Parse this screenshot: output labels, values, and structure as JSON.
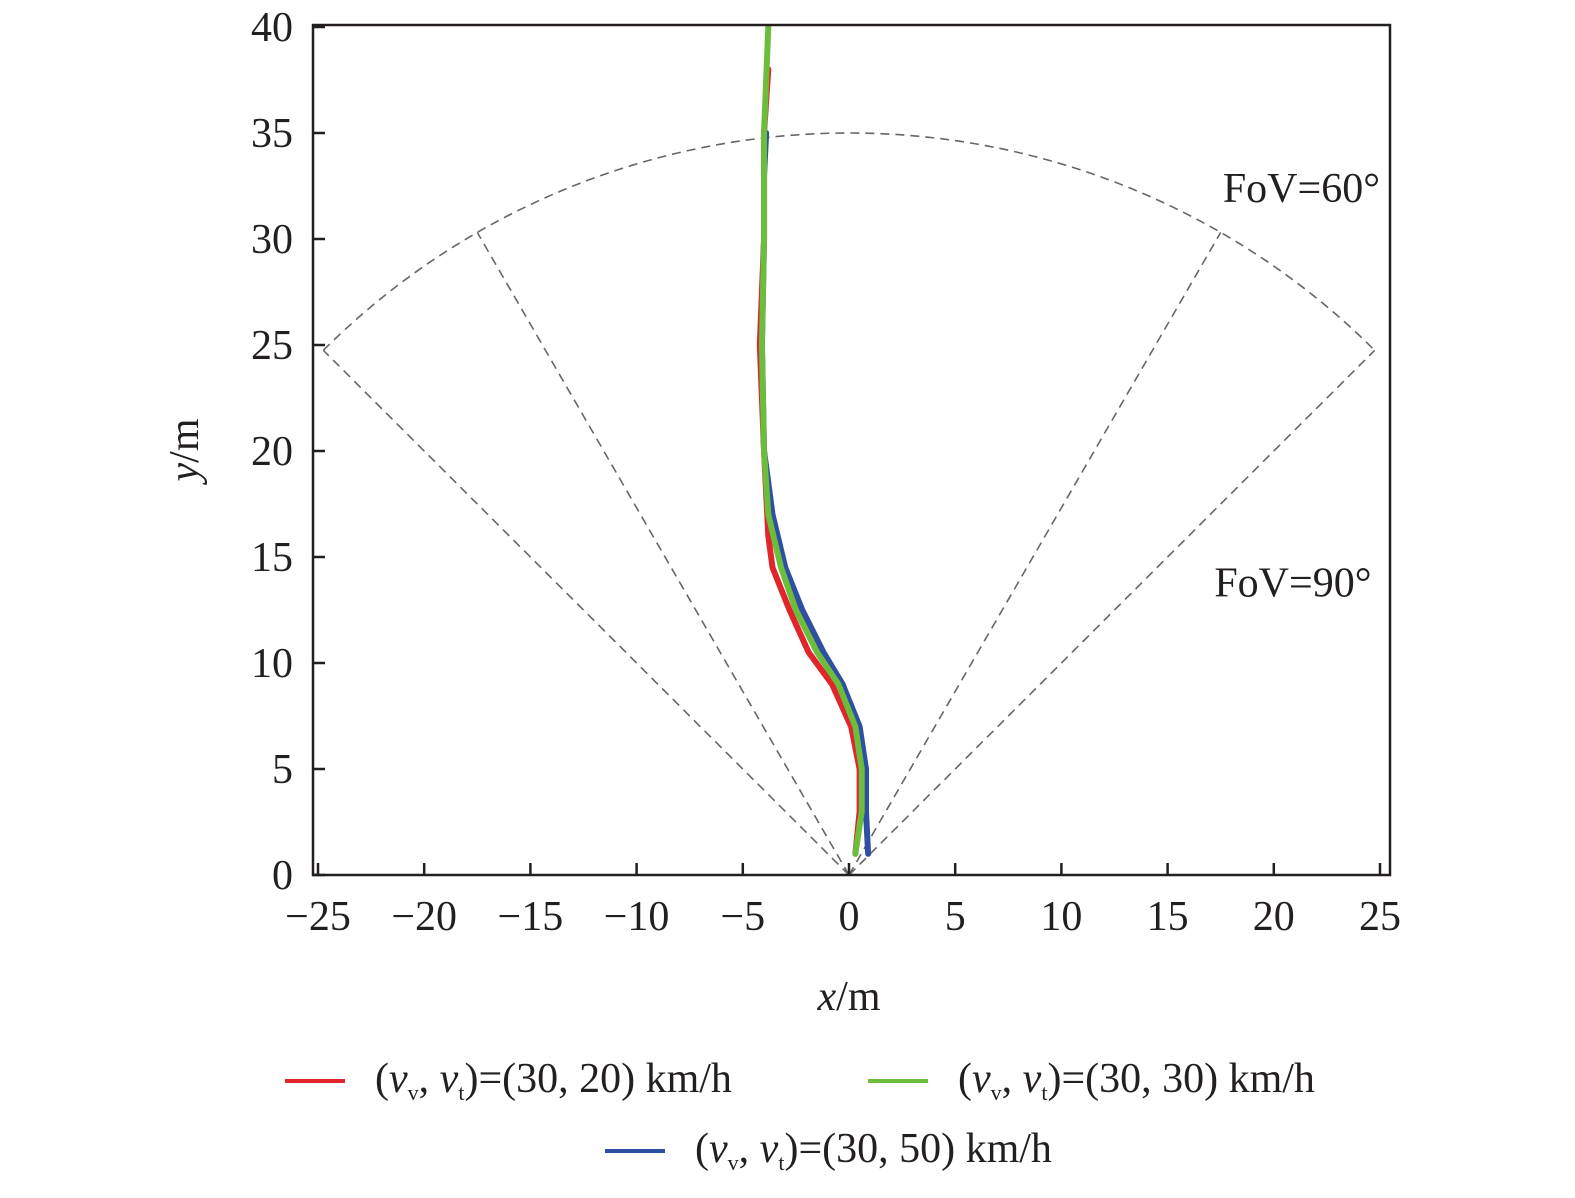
{
  "chart_data": {
    "type": "line",
    "xlabel": {
      "var": "x",
      "unit": "/m"
    },
    "ylabel": {
      "var": "y",
      "unit": "/m"
    },
    "xlim": [
      -25.3,
      25.5
    ],
    "ylim": [
      0,
      40
    ],
    "xticks": [
      -25,
      -20,
      -15,
      -10,
      -5,
      0,
      5,
      10,
      15,
      20,
      25
    ],
    "yticks": [
      0,
      5,
      10,
      15,
      20,
      25,
      30,
      35,
      40
    ],
    "xtick_labels": [
      "−25",
      "−20",
      "−15",
      "−10",
      "−5",
      "0",
      "5",
      "10",
      "15",
      "20",
      "25"
    ],
    "ytick_labels": [
      "0",
      "5",
      "10",
      "15",
      "20",
      "25",
      "30",
      "35",
      "40"
    ],
    "grid": false,
    "legend_placement": "bottom",
    "annotations": [
      {
        "text": "FoV=60°",
        "x": 21.3,
        "y": 32.4
      },
      {
        "text": "FoV=90°",
        "x": 20.9,
        "y": 13.8
      }
    ],
    "fov_sectors": [
      {
        "angle_deg": 60,
        "radius": 35
      },
      {
        "angle_deg": 90,
        "radius": 35
      }
    ],
    "series": [
      {
        "name_symbol": {
          "v": "v",
          "sub1": "v",
          "sub2": "t"
        },
        "name_value": "=(30, 20) km/h",
        "color": "#e0262c",
        "x": [
          0.3,
          0.5,
          0.5,
          0.1,
          -0.8,
          -1.9,
          -2.8,
          -3.6,
          -3.8,
          -4.0,
          -4.2,
          -4.0,
          -4.0,
          -3.8
        ],
        "y": [
          1,
          3,
          5,
          7,
          9,
          10.5,
          12.5,
          14.5,
          16,
          20,
          25,
          30,
          35,
          38
        ]
      },
      {
        "name_symbol": {
          "v": "v",
          "sub1": "v",
          "sub2": "t"
        },
        "name_value": "=(30, 50) km/h",
        "color": "#2f4fa2",
        "x": [
          0.9,
          0.8,
          0.8,
          0.5,
          -0.3,
          -1.2,
          -2.2,
          -3.0,
          -3.6,
          -4.0,
          -4.1,
          -4.0,
          -4.0,
          -3.9
        ],
        "y": [
          1,
          3,
          5,
          7,
          9,
          10.5,
          12.5,
          14.5,
          17,
          20,
          25,
          30,
          33,
          35
        ]
      },
      {
        "name_symbol": {
          "v": "v",
          "sub1": "v",
          "sub2": "t"
        },
        "name_value": "=(30, 30) km/h",
        "color": "#6cbd3c",
        "x": [
          0.3,
          0.6,
          0.6,
          0.3,
          -0.5,
          -1.5,
          -2.5,
          -3.2,
          -3.8,
          -4.0,
          -4.1,
          -4.0,
          -4.0,
          -3.8
        ],
        "y": [
          1,
          3,
          5,
          7,
          9,
          10.5,
          12.5,
          14.5,
          17,
          20,
          25,
          30,
          35,
          40
        ]
      }
    ]
  }
}
